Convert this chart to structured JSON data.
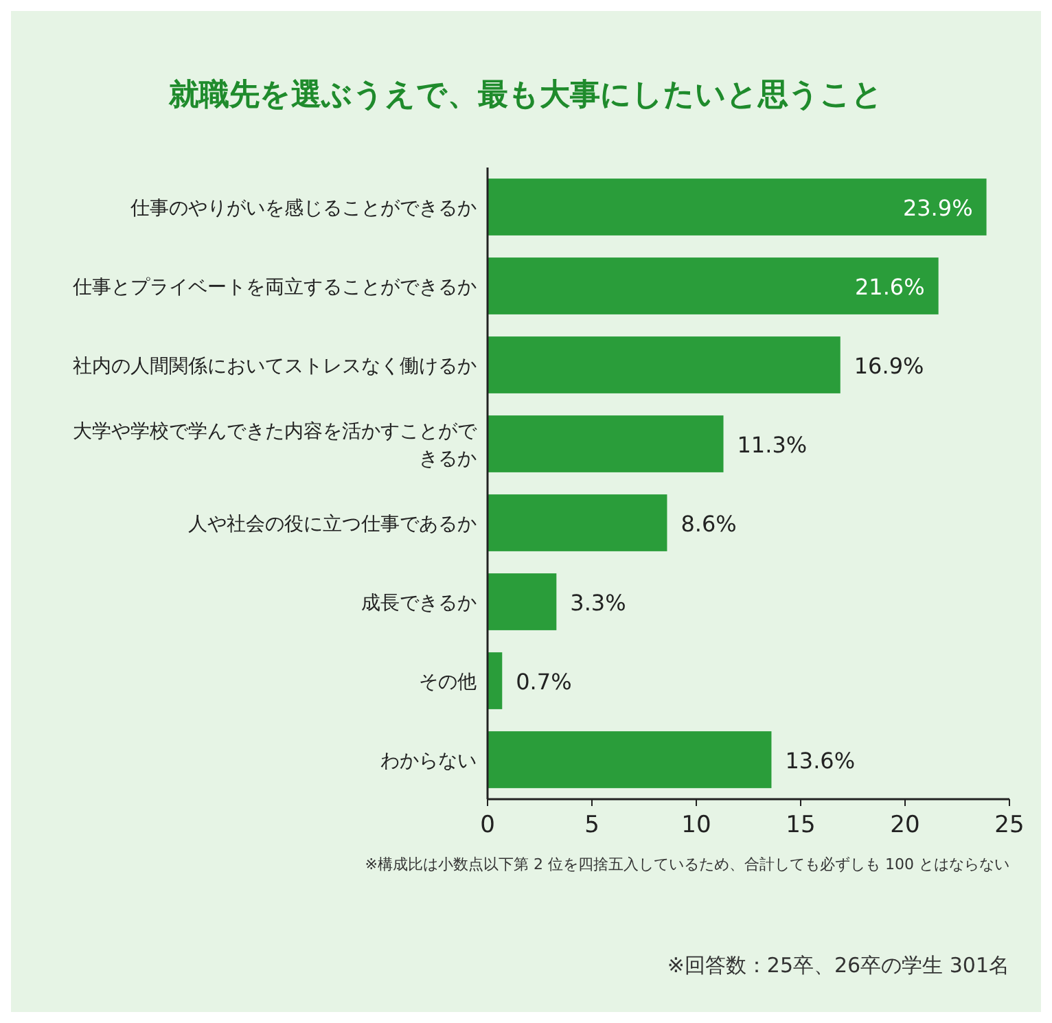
{
  "chart_data": {
    "type": "bar",
    "orientation": "horizontal",
    "title": "就職先を選ぶうえで、最も大事にしたいと思うこと",
    "categories": [
      "仕事のやりがいを感じることができるか",
      "仕事とプライベートを両立することができるか",
      "社内の人間関係においてストレスなく働けるか",
      "大学や学校で学んできた内容を活かすことができるか",
      "人や社会の役に立つ仕事であるか",
      "成長できるか",
      "その他",
      "わからない"
    ],
    "values": [
      23.9,
      21.6,
      16.9,
      11.3,
      8.6,
      3.3,
      0.7,
      13.6
    ],
    "value_labels": [
      "23.9%",
      "21.6%",
      "16.9%",
      "11.3%",
      "8.6%",
      "3.3%",
      "0.7%",
      "13.6%"
    ],
    "color": "#2a9d3a",
    "xlim": [
      0,
      25
    ],
    "xticks": [
      0,
      5,
      10,
      15,
      20,
      25
    ],
    "annotations": [
      "※構成比は小数点以下第 2 位を四捨五入しているため、合計しても必ずしも 100 とはならない",
      "※回答数：25卒、26卒の学生 301名"
    ]
  }
}
